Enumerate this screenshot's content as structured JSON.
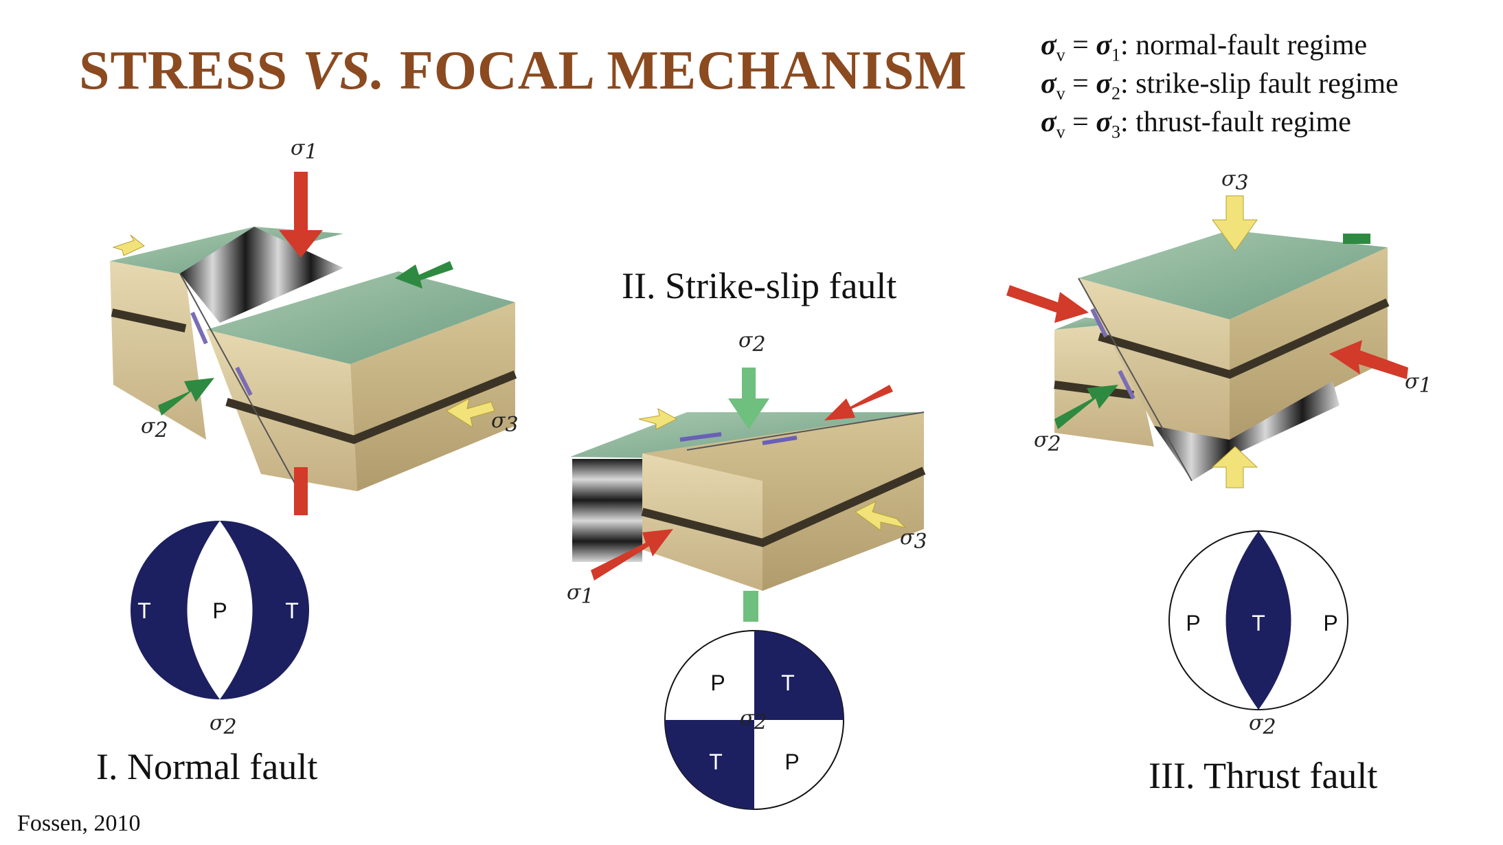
{
  "title": {
    "part1": "STRESS ",
    "part2": "VS.",
    "part3": " FOCAL MECHANISM"
  },
  "regimes": [
    {
      "lhs": "σ",
      "lhs_sub": "v",
      "eq": " = ",
      "rhs": "σ",
      "rhs_sub": "1",
      "desc": ": normal-fault regime"
    },
    {
      "lhs": "σ",
      "lhs_sub": "v",
      "eq": " = ",
      "rhs": "σ",
      "rhs_sub": "2",
      "desc": ": strike-slip fault regime"
    },
    {
      "lhs": "σ",
      "lhs_sub": "v",
      "eq": " = ",
      "rhs": "σ",
      "rhs_sub": "3",
      "desc": ": thrust-fault regime"
    }
  ],
  "panels": {
    "normal": {
      "label": "I. Normal fault",
      "stress_labels": {
        "top": "σ",
        "top_sub": "1",
        "left": "σ",
        "left_sub": "2",
        "right": "σ",
        "right_sub": "3"
      },
      "ball": {
        "left": "T",
        "center": "P",
        "right": "T",
        "axis": "σ",
        "axis_sub": "2"
      }
    },
    "strike_slip": {
      "label": "II. Strike-slip fault",
      "stress_labels": {
        "top": "σ",
        "top_sub": "2",
        "left": "σ",
        "left_sub": "1",
        "right": "σ",
        "right_sub": "3"
      },
      "ball": {
        "tl": "P",
        "tr": "T",
        "bl": "T",
        "br": "P",
        "axis": "σ",
        "axis_sub": "2"
      }
    },
    "thrust": {
      "label": "III. Thrust fault",
      "stress_labels": {
        "top": "σ",
        "top_sub": "3",
        "left": "σ",
        "left_sub": "2",
        "right": "σ",
        "right_sub": "1"
      },
      "ball": {
        "left": "P",
        "center": "T",
        "right": "P",
        "axis": "σ",
        "axis_sub": "2"
      }
    }
  },
  "credit": "Fossen, 2010",
  "colors": {
    "title": "#8b4a1f",
    "ball_fill": "#1c2060",
    "sigma1_arrow": "#d23a2a",
    "sigma2_arrow": "#2e8a40",
    "sigma3_arrow": "#f2e27a",
    "block_side": "#d9c9a0",
    "block_top": "#8ab79d",
    "layer": "#3b3426"
  }
}
